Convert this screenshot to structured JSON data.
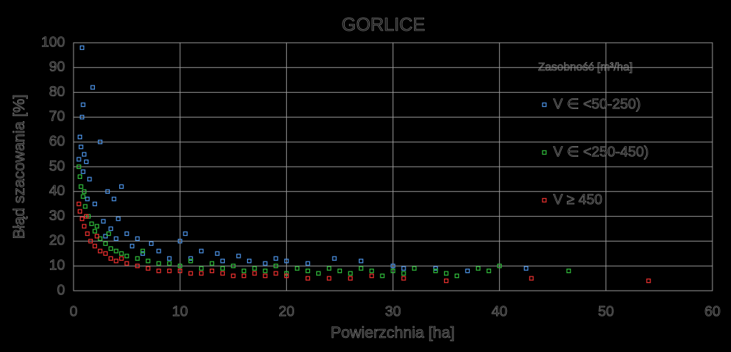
{
  "chart_data": {
    "type": "scatter",
    "title": "GORLICE",
    "x_label": "Powierzchnia [ha]",
    "y_label": "Błąd szacowania [%]",
    "legend_title": "Zasobność [m³/ha]",
    "xlim": [
      0,
      60
    ],
    "xticks": [
      0,
      10,
      20,
      30,
      40,
      50,
      60
    ],
    "ylim": [
      0,
      100
    ],
    "yticks": [
      0,
      10,
      20,
      30,
      40,
      50,
      60,
      70,
      80,
      90,
      100
    ],
    "grid": true,
    "legend_position": "right",
    "series": [
      {
        "name": "V ∈ <50-250)",
        "color": "#4a8fe0",
        "x": [
          0.8,
          1.8,
          0.9,
          0.8,
          0.6,
          1.0,
          1.2,
          2.5,
          0.7,
          0.5,
          1.5,
          0.9,
          4.5,
          3.8,
          3.2,
          2.0,
          1.3,
          2.8,
          3.5,
          4.2,
          5.0,
          6.0,
          7.3,
          10.5,
          10,
          8,
          6.5,
          12,
          13.5,
          15.5,
          16.5,
          19,
          20,
          22,
          24.5,
          27,
          30,
          31,
          34,
          37,
          42.5,
          9,
          11,
          14,
          18,
          5.5,
          4,
          3
        ],
        "values": [
          98,
          82,
          75,
          70,
          62,
          55,
          52,
          60,
          58,
          53,
          45,
          48,
          42,
          37,
          40,
          35,
          37,
          28,
          25,
          29,
          23,
          21,
          19,
          23,
          20,
          16,
          15,
          16,
          15,
          14,
          12,
          13,
          12,
          11,
          13,
          12,
          10,
          9,
          9,
          8,
          9,
          13,
          13,
          12,
          11,
          18,
          21,
          22
        ]
      },
      {
        "name": "V ∈ <250-450)",
        "color": "#2fb83a",
        "x": [
          0.5,
          0.6,
          0.7,
          0.9,
          1.1,
          1.4,
          1.7,
          2.0,
          2.5,
          3.0,
          3.5,
          4.0,
          5.0,
          6.0,
          7.0,
          8.0,
          9.0,
          10.0,
          11,
          12,
          13,
          14,
          15,
          16,
          17,
          18,
          19,
          20,
          21,
          22,
          23,
          24,
          25,
          26,
          27,
          28,
          29,
          30,
          31,
          32,
          34,
          35,
          36,
          38,
          39,
          40,
          46.5,
          2.2,
          3.3,
          4.5,
          6.5,
          1.0
        ],
        "values": [
          50,
          46,
          42,
          38,
          34,
          30,
          27,
          24,
          21,
          19,
          17,
          16,
          14,
          13,
          12,
          11,
          11,
          10,
          12,
          9,
          11,
          9,
          10,
          8,
          9,
          8,
          10,
          7,
          9,
          8,
          7,
          9,
          8,
          7,
          9,
          8,
          6,
          8,
          7,
          9,
          8,
          7,
          6,
          9,
          8,
          10,
          8,
          26,
          23,
          15,
          16,
          40
        ]
      },
      {
        "name": "V ≥ 450",
        "color": "#e8302e",
        "x": [
          0.5,
          0.6,
          0.8,
          1.0,
          1.3,
          1.6,
          2.0,
          2.5,
          3.0,
          3.5,
          4.0,
          5.0,
          6.0,
          7.0,
          8.0,
          9,
          10,
          11,
          12,
          13,
          14,
          15,
          16,
          17,
          18,
          20,
          22,
          24,
          26,
          28,
          31,
          35,
          43,
          54,
          1.2,
          2.2,
          4.5,
          19
        ],
        "values": [
          35,
          32,
          29,
          26,
          23,
          20,
          18,
          16,
          15,
          13,
          12,
          11,
          10,
          9,
          8,
          8,
          8,
          7,
          7,
          8,
          7,
          6,
          6,
          7,
          6,
          6,
          5,
          5,
          5,
          6,
          5,
          4,
          5,
          4,
          30,
          22,
          13,
          7
        ]
      }
    ]
  }
}
